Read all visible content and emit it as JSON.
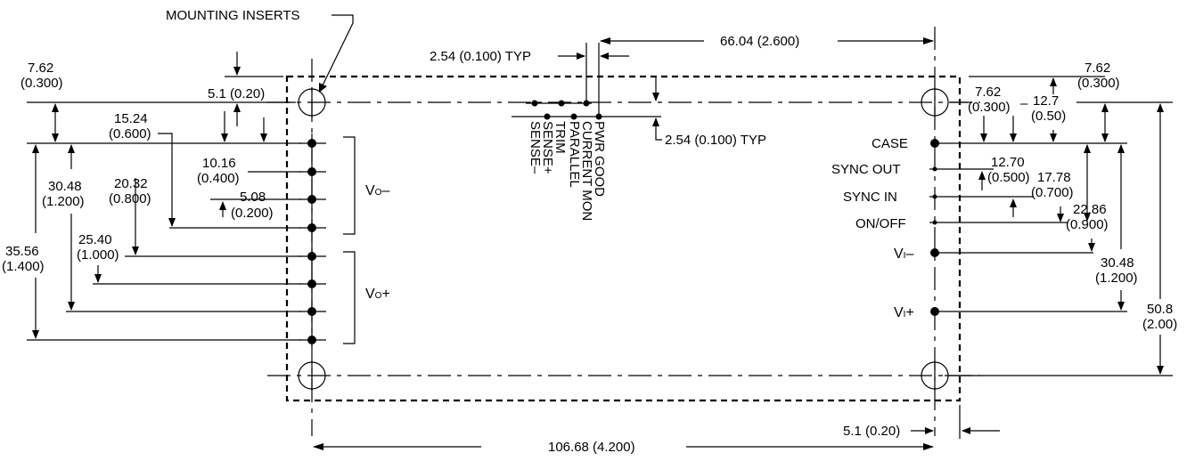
{
  "labels": {
    "mounting_inserts": "MOUNTING INSERTS",
    "dim_pitch_top": "2.54 (0.100) TYP",
    "dim_pitch_right": "2.54 (0.100) TYP",
    "dim_66_04": "66.04 (2.600)",
    "dim_106_68": "106.68 (4.200)",
    "dim_5_1_bottom": "5.1 (0.20)",
    "left": {
      "d7_62_a": "7.62",
      "d7_62_b": "(0.300)",
      "d5_1": "5.1 (0.20)",
      "d15_24_a": "15.24",
      "d15_24_b": "(0.600)",
      "d10_16_a": "10.16",
      "d10_16_b": "(0.400)",
      "d5_08_a": "5.08",
      "d5_08_b": "(0.200)",
      "d20_32_a": "20.32",
      "d20_32_b": "(0.800)",
      "d30_48_a": "30.48",
      "d30_48_b": "(1.200)",
      "d25_40_a": "25.40",
      "d25_40_b": "(1.000)",
      "d35_56_a": "35.56",
      "d35_56_b": "(1.400)"
    },
    "right": {
      "d7_62_outer_a": "7.62",
      "d7_62_outer_b": "(0.300)",
      "d7_62_inner_a": "7.62",
      "d7_62_inner_b": "(0.300)",
      "dash": "–",
      "d12_7_a": "12.7",
      "d12_7_b": "(0.50)",
      "d12_70_a": "12.70",
      "d12_70_b": "(0.500)",
      "d17_78_a": "17.78",
      "d17_78_b": "(0.700)",
      "d22_86_a": "22.86",
      "d22_86_b": "(0.900)",
      "d30_48_a": "30.48",
      "d30_48_b": "(1.200)",
      "d50_8_a": "50.8",
      "d50_8_b": "(2.00)"
    },
    "pins_top": [
      "SENSE–",
      "SENSE+",
      "TRIM",
      "PARALLEL",
      "CURRENT MON",
      "PWR GOOD"
    ],
    "pins_right": {
      "case": "CASE",
      "sync_out": "SYNC OUT",
      "sync_in": "SYNC IN",
      "on_off": "ON/OFF",
      "vi_minus_main": "V",
      "vi_minus_sub": "I",
      "vi_minus_sign": "–",
      "vi_plus_main": "V",
      "vi_plus_sub": "I",
      "vi_plus_sign": "+"
    },
    "groups": {
      "vo_minus_main": "V",
      "vo_minus_sub": "O",
      "vo_minus_sign": "–",
      "vo_plus_main": "V",
      "vo_plus_sub": "O",
      "vo_plus_sign": "+"
    }
  }
}
